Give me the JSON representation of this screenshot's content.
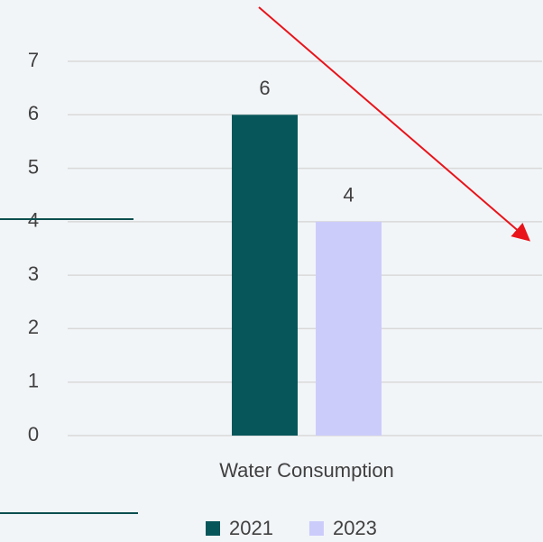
{
  "chart_data": {
    "type": "bar",
    "categories": [
      "Water Consumption"
    ],
    "series": [
      {
        "name": "2021",
        "color": "#07565a",
        "values": [
          6
        ]
      },
      {
        "name": "2023",
        "color": "#ccccfb",
        "values": [
          4
        ]
      }
    ],
    "ylim": [
      0,
      7
    ],
    "yticks": [
      0,
      1,
      2,
      3,
      4,
      5,
      6,
      7
    ],
    "grid": true,
    "legend": "bottom"
  }
}
